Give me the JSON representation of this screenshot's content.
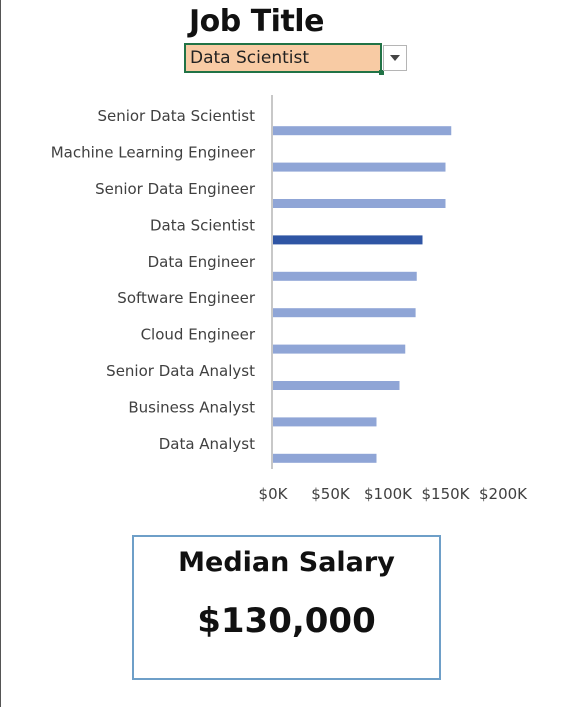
{
  "header": {
    "title": "Job Title"
  },
  "selector": {
    "selected_value": "Data Scientist",
    "arrow_icon": "chevron-down-icon"
  },
  "colors": {
    "highlight": "#2f55a4",
    "default_bar": "#8fa5d6",
    "axis": "#c8c8c8",
    "box_border": "#6e9fc8",
    "dropdown_bg": "#f8cba4",
    "dropdown_border": "#217346"
  },
  "chart_data": {
    "type": "bar",
    "orientation": "horizontal",
    "categories": [
      "Senior Data Scientist",
      "Machine Learning Engineer",
      "Senior Data Engineer",
      "Data Scientist",
      "Data Engineer",
      "Software Engineer",
      "Cloud Engineer",
      "Senior Data Analyst",
      "Business Analyst",
      "Data Analyst"
    ],
    "values": [
      155000,
      150000,
      150000,
      130000,
      125000,
      124000,
      115000,
      110000,
      90000,
      90000
    ],
    "highlight_category": "Data Scientist",
    "xlim": [
      0,
      200000
    ],
    "xticks": [
      "$0K",
      "$50K",
      "$100K",
      "$150K",
      "$200K"
    ],
    "grid": false,
    "legend": "none",
    "title": "",
    "xlabel": "",
    "ylabel": ""
  },
  "summary": {
    "label": "Median Salary",
    "value": "$130,000"
  }
}
